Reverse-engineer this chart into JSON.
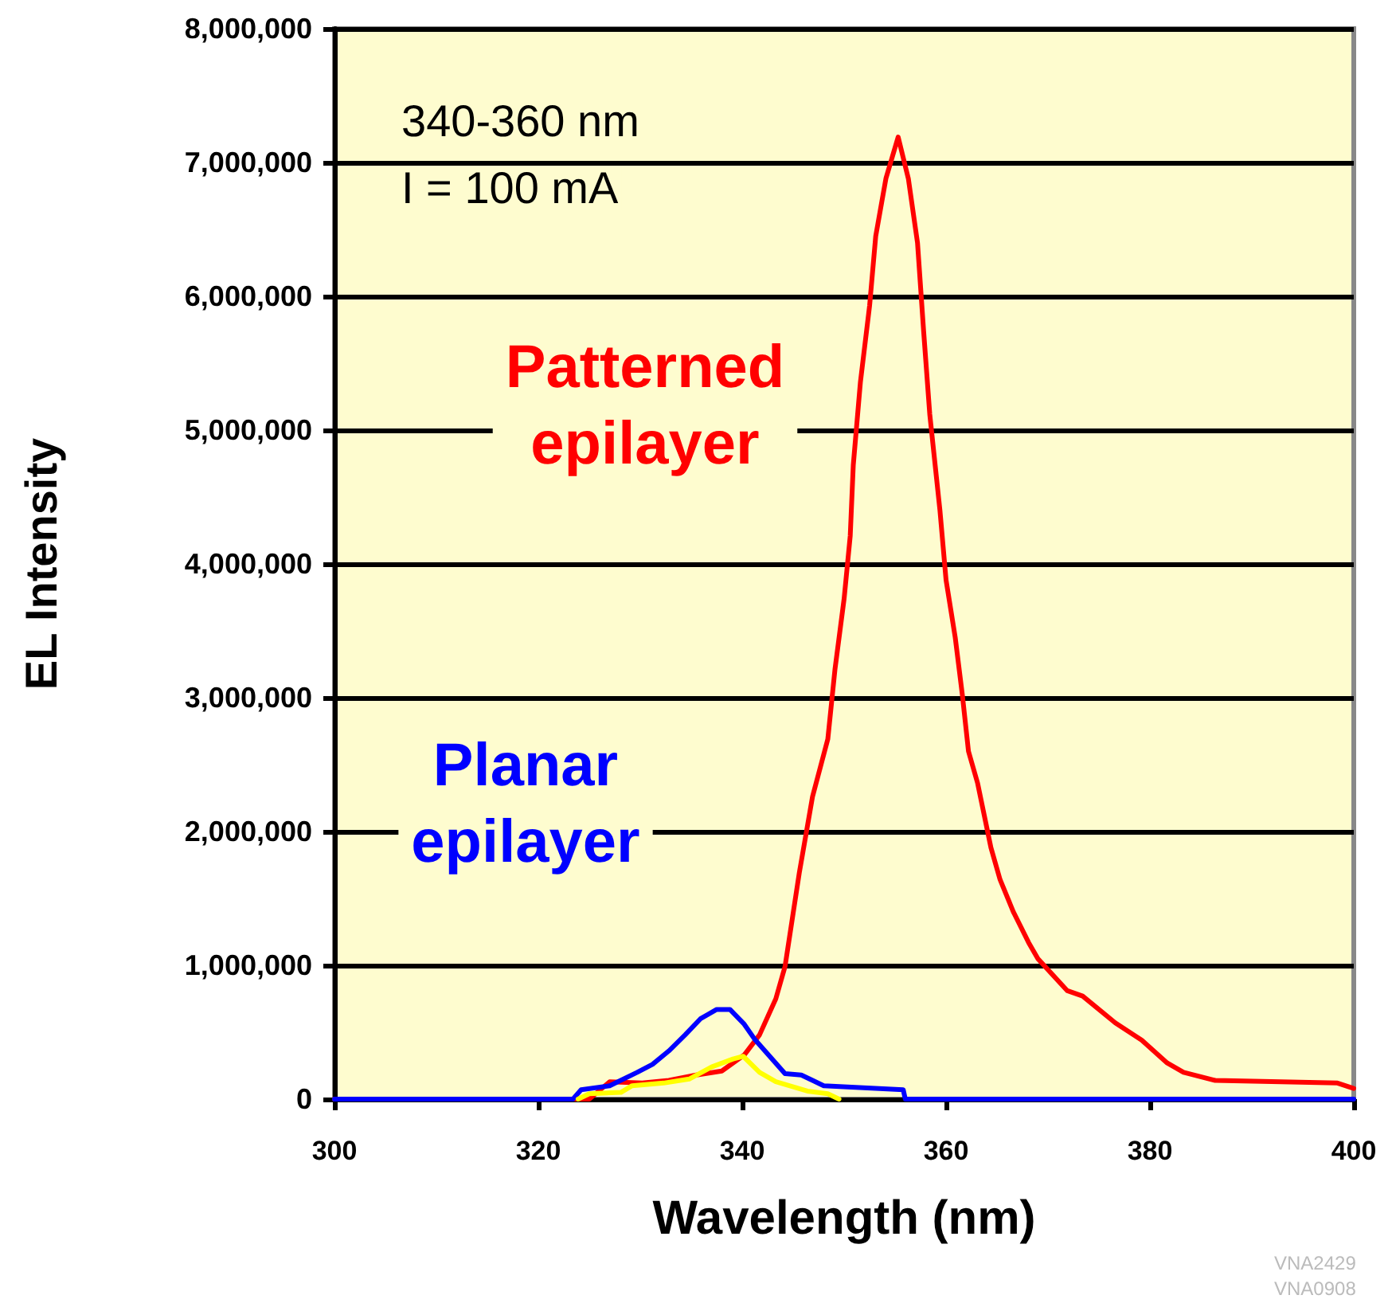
{
  "chart_data": {
    "type": "line",
    "xlabel": "Wavelength (nm)",
    "ylabel": "EL Intensity",
    "xlim": [
      300,
      400
    ],
    "xticks": [
      300,
      320,
      340,
      360,
      380,
      400
    ],
    "ylim": [
      0,
      8000000
    ],
    "yticks": [
      0,
      {
        "value": 1000000,
        "label": "1,000,000"
      },
      {
        "value": 2000000,
        "label": "2,000,000"
      },
      {
        "value": 3000000,
        "label": "3,000,000"
      },
      {
        "value": 4000000,
        "label": "4,000,000"
      },
      {
        "value": 5000000,
        "label": "5,000,000"
      },
      {
        "value": 6000000,
        "label": "6,000,000"
      },
      {
        "value": 7000000,
        "label": "7,000,000"
      },
      {
        "value": 8000000,
        "label": "8,000,000"
      }
    ],
    "grid": "y",
    "marker": "none",
    "line_style": "solid",
    "legend": false,
    "annotations": [
      "340-360 nm",
      "I = 100 mA",
      "VNA2429",
      "VNA0908"
    ],
    "series": [
      {
        "name": "Patterned epilayer",
        "color": "#ff0000",
        "x": [
          300,
          325,
          327,
          330.2,
          332.8,
          335.5,
          338,
          340.2,
          341.7,
          343.3,
          344.2,
          345.6,
          346.9,
          348.4,
          349.1,
          350,
          350.6,
          350.9,
          351.6,
          352.5,
          353.1,
          354.1,
          355.3,
          356.3,
          357.2,
          357.8,
          358.4,
          359.4,
          360,
          360.9,
          361.6,
          362.2,
          363.1,
          364.4,
          365.3,
          366.6,
          368.1,
          369,
          371.9,
          373.4,
          376.6,
          379.2,
          381.7,
          383.3,
          386.4,
          398.4,
          400
        ],
        "values": [
          0,
          0,
          130000,
          120000,
          140000,
          180000,
          210000,
          330000,
          480000,
          750000,
          990000,
          1690000,
          2260000,
          2690000,
          3210000,
          3740000,
          4210000,
          4740000,
          5360000,
          5930000,
          6450000,
          6880000,
          7190000,
          6880000,
          6400000,
          5740000,
          5120000,
          4400000,
          3880000,
          3450000,
          3020000,
          2600000,
          2360000,
          1880000,
          1640000,
          1400000,
          1170000,
          1050000,
          810000,
          770000,
          570000,
          440000,
          270000,
          200000,
          140000,
          120000,
          80000
        ]
      },
      {
        "name": "Planar epilayer",
        "color": "#0000ff",
        "x": [
          300,
          323.4,
          324.2,
          327,
          329.7,
          331.2,
          332.8,
          334.4,
          335.9,
          337.5,
          338.8,
          340.2,
          341.2,
          342.7,
          344.2,
          345.8,
          348,
          355.8,
          356,
          400
        ],
        "values": [
          0,
          0,
          70000,
          100000,
          200000,
          260000,
          360000,
          480000,
          600000,
          670000,
          670000,
          560000,
          450000,
          320000,
          190000,
          180000,
          100000,
          70000,
          0,
          0
        ]
      },
      {
        "color": "#ffff00",
        "x": [
          323.9,
          325,
          328.1,
          329.2,
          332.3,
          334.8,
          337,
          339.1,
          340.1,
          341.7,
          343.3,
          346.4,
          348.4,
          349.5
        ],
        "values": [
          0,
          40000,
          50000,
          100000,
          120000,
          150000,
          240000,
          300000,
          320000,
          200000,
          130000,
          60000,
          40000,
          0
        ]
      }
    ]
  }
}
